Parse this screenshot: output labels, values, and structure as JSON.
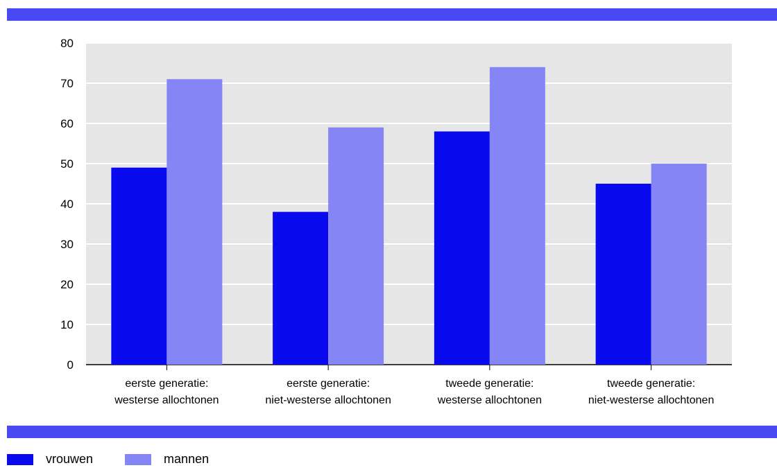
{
  "chart_data": {
    "type": "bar",
    "categories": [
      [
        "eerste generatie:",
        "westerse allochtonen"
      ],
      [
        "eerste generatie:",
        "niet-westerse allochtonen"
      ],
      [
        "tweede generatie:",
        "westerse allochtonen"
      ],
      [
        "tweede generatie:",
        "niet-westerse allochtonen"
      ]
    ],
    "series": [
      {
        "name": "vrouwen",
        "values": [
          49,
          38,
          58,
          45
        ],
        "color": "#0a0aee"
      },
      {
        "name": "mannen",
        "values": [
          71,
          59,
          74,
          50
        ],
        "color": "#8585f5"
      }
    ],
    "ylim": [
      0,
      80
    ],
    "yticks": [
      0,
      10,
      20,
      30,
      40,
      50,
      60,
      70,
      80
    ],
    "grid": true,
    "legend_position": "bottom-left",
    "plot_background": "#e6e6e6"
  },
  "colors": {
    "rule": "#4a4af5"
  }
}
